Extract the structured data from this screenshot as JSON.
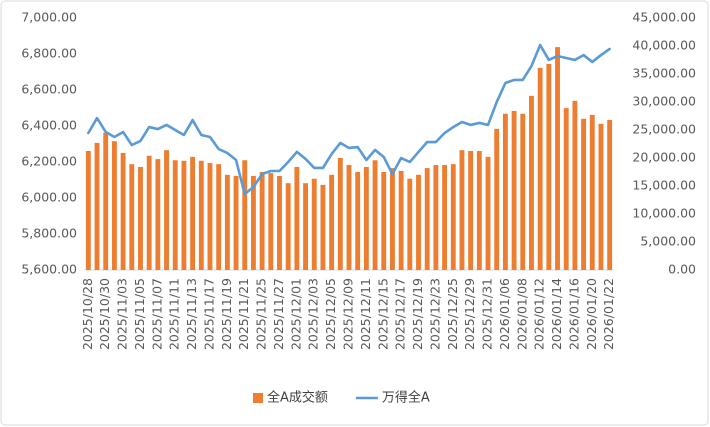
{
  "chart_data": {
    "type": "combo",
    "categories": [
      "2025/10/28",
      null,
      "2025/10/30",
      null,
      "2025/11/03",
      null,
      "2025/11/05",
      null,
      "2025/11/07",
      null,
      "2025/11/11",
      null,
      "2025/11/13",
      null,
      "2025/11/17",
      null,
      "2025/11/19",
      null,
      "2025/11/21",
      null,
      "2025/11/25",
      null,
      "2025/11/27",
      null,
      "2025/12/01",
      null,
      "2025/12/03",
      null,
      "2025/12/05",
      null,
      "2025/12/09",
      null,
      "2025/12/11",
      null,
      "2025/12/15",
      null,
      "2025/12/17",
      null,
      "2025/12/19",
      null,
      "2025/12/23",
      null,
      "2025/12/25",
      null,
      "2025/12/29",
      null,
      "2025/12/31",
      null,
      "2026/01/06",
      null,
      "2026/01/08",
      null,
      "2026/01/12",
      null,
      "2026/01/14",
      null,
      "2026/01/16",
      null,
      "2026/01/20",
      null,
      "2026/01/22"
    ],
    "series": [
      {
        "name": "全A成交额",
        "type": "bar",
        "axis": "y2",
        "color": "#ED7D31",
        "values": [
          21250,
          22700,
          24500,
          23000,
          20900,
          18900,
          18400,
          20400,
          19800,
          21400,
          19600,
          19500,
          20200,
          19500,
          19100,
          18900,
          17000,
          16800,
          19600,
          16800,
          17500,
          17300,
          16800,
          15500,
          18400,
          15500,
          16300,
          15200,
          17000,
          20000,
          18750,
          17500,
          18400,
          19600,
          17500,
          18200,
          17700,
          16300,
          17000,
          18200,
          18750,
          18750,
          18900,
          21400,
          21250,
          21250,
          20200,
          25200,
          27900,
          28400,
          27900,
          31100,
          36100,
          36800,
          39800,
          28900,
          30200,
          27000,
          27700,
          26100,
          26800
        ]
      },
      {
        "name": "万得全A",
        "type": "line",
        "axis": "y",
        "color": "#5B9BD5",
        "values": [
          6361,
          6444,
          6367,
          6339,
          6367,
          6294,
          6317,
          6394,
          6383,
          6406,
          6378,
          6350,
          6433,
          6350,
          6339,
          6272,
          6250,
          6211,
          6022,
          6061,
          6133,
          6150,
          6150,
          6200,
          6256,
          6217,
          6167,
          6167,
          6244,
          6306,
          6278,
          6283,
          6211,
          6267,
          6228,
          6133,
          6222,
          6200,
          6256,
          6311,
          6311,
          6361,
          6394,
          6422,
          6406,
          6417,
          6406,
          6533,
          6639,
          6656,
          6656,
          6733,
          6850,
          6767,
          6789,
          6778,
          6767,
          6794,
          6756,
          6794,
          6828
        ]
      }
    ],
    "ylim": [
      5600,
      7000
    ],
    "yticks": [
      {
        "value": 5600,
        "label": "5,600.00"
      },
      {
        "value": 5800,
        "label": "5,800.00"
      },
      {
        "value": 6000,
        "label": "6,000.00"
      },
      {
        "value": 6200,
        "label": "6,200.00"
      },
      {
        "value": 6400,
        "label": "6,400.00"
      },
      {
        "value": 6600,
        "label": "6,600.00"
      },
      {
        "value": 6800,
        "label": "6,800.00"
      },
      {
        "value": 7000,
        "label": "7,000.00"
      }
    ],
    "y2lim": [
      0,
      45000
    ],
    "y2ticks": [
      {
        "value": 0,
        "label": "0.00"
      },
      {
        "value": 5000,
        "label": "5,000.00"
      },
      {
        "value": 10000,
        "label": "10,000.00"
      },
      {
        "value": 15000,
        "label": "15,000.00"
      },
      {
        "value": 20000,
        "label": "20,000.00"
      },
      {
        "value": 25000,
        "label": "25,000.00"
      },
      {
        "value": 30000,
        "label": "30,000.00"
      },
      {
        "value": 35000,
        "label": "35,000.00"
      },
      {
        "value": 40000,
        "label": "40,000.00"
      },
      {
        "value": 45000,
        "label": "45,000.00"
      }
    ],
    "legend": "bottom",
    "grid": false
  }
}
